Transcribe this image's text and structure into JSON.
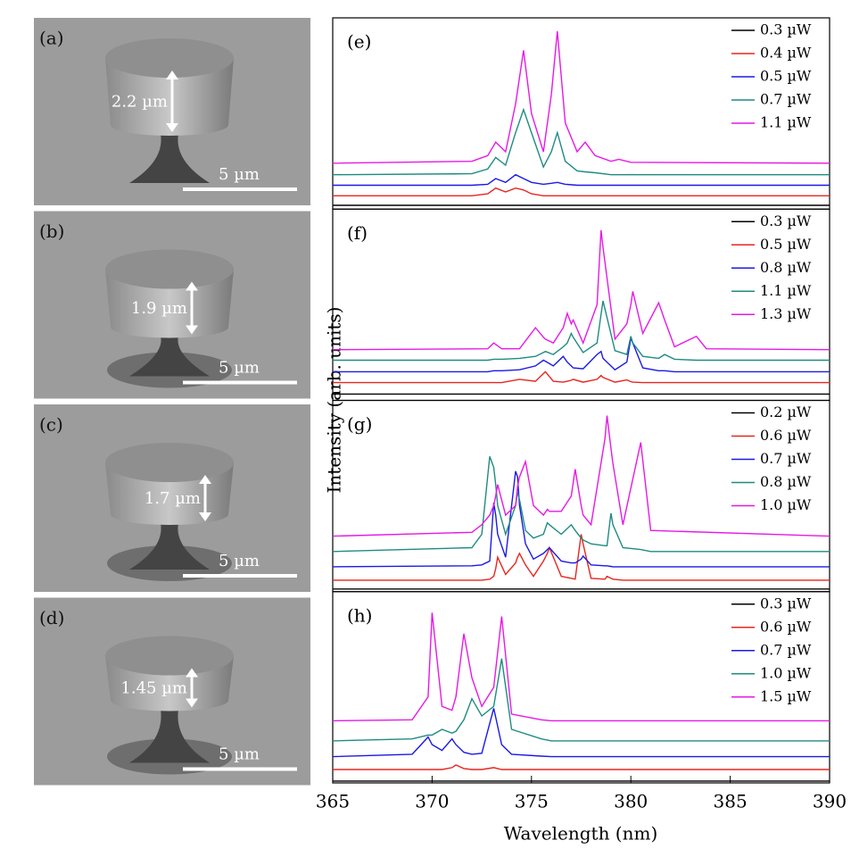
{
  "images": [
    {
      "label": "(a)",
      "height": "2.2 µm",
      "scale": "5 µm"
    },
    {
      "label": "(b)",
      "height": "1.9 µm",
      "scale": "5 µm"
    },
    {
      "label": "(c)",
      "height": "1.7 µm",
      "scale": "5 µm"
    },
    {
      "label": "(d)",
      "height": "1.45 µm",
      "scale": "5 µm"
    }
  ],
  "axes": {
    "xlabel": "Wavelength (nm)",
    "ylabel": "Intensity (arb. units)"
  },
  "chart_data": [
    {
      "type": "line",
      "title": "(e)",
      "xlim": [
        365,
        390
      ],
      "ylim": [
        0,
        100
      ],
      "x": [
        365,
        372,
        372.8,
        373.2,
        373.7,
        374.2,
        374.6,
        375.0,
        375.6,
        376.0,
        376.3,
        376.7,
        377.3,
        377.7,
        378.2,
        379.0,
        379.4,
        380,
        390
      ],
      "series": [
        {
          "name": "0.3 µW",
          "color": "#000000",
          "values": [
            2,
            2,
            2,
            2,
            2,
            2,
            2,
            2,
            2,
            2,
            2,
            2,
            2,
            2,
            2,
            2,
            2,
            2,
            2
          ]
        },
        {
          "name": "0.4 µW",
          "color": "#e8251f",
          "values": [
            7,
            7,
            8,
            11,
            9,
            11,
            10,
            8,
            7,
            7,
            7,
            7,
            7,
            7,
            7,
            7,
            7,
            7,
            7
          ]
        },
        {
          "name": "0.5 µW",
          "color": "#1a1ae6",
          "values": [
            12.5,
            12.5,
            13,
            16,
            14,
            18,
            16,
            14,
            13,
            13.5,
            14,
            13,
            12.5,
            12.5,
            12.5,
            12.5,
            12.5,
            12.5,
            12.5
          ]
        },
        {
          "name": "0.7 µW",
          "color": "#1e8c80",
          "values": [
            18,
            18.5,
            21,
            27,
            23,
            40,
            52,
            40,
            22,
            30,
            40,
            25,
            20,
            19.5,
            19,
            18,
            18,
            18,
            18
          ]
        },
        {
          "name": "1.1 µW",
          "color": "#e619e6",
          "values": [
            24,
            25,
            28,
            35,
            30,
            55,
            83,
            50,
            30,
            60,
            93,
            45,
            30,
            35,
            28,
            25,
            26,
            24.5,
            24
          ]
        }
      ]
    },
    {
      "type": "line",
      "title": "(f)",
      "xlim": [
        365,
        390
      ],
      "ylim": [
        0,
        100
      ],
      "x": [
        365,
        372.8,
        373.1,
        373.5,
        374.4,
        375.2,
        375.6,
        375.7,
        376.1,
        376.6,
        376.8,
        377.0,
        377.1,
        377.6,
        378.3,
        378.5,
        378.6,
        379.2,
        379.8,
        380.0,
        380.1,
        380.6,
        381.4,
        381.7,
        382.2,
        383.3,
        383.8,
        390
      ],
      "series": [
        {
          "name": "0.3 µW",
          "color": "#000000",
          "values": [
            3.3,
            3.3,
            3.3,
            3.3,
            3.3,
            3.3,
            3.3,
            3.3,
            3.3,
            3.3,
            3.3,
            3.3,
            3.3,
            3.3,
            3.3,
            3.3,
            3.3,
            3.3,
            3.3,
            3.3,
            3.3,
            3.3,
            3.3,
            3.3,
            3.3,
            3.3,
            3.3,
            3.3
          ]
        },
        {
          "name": "0.5 µW",
          "color": "#e8251f",
          "values": [
            9.3,
            9.3,
            9.3,
            9.3,
            11,
            10,
            14,
            15,
            10,
            9.5,
            10,
            10.5,
            11,
            9.5,
            11,
            13,
            12,
            9.5,
            10.7,
            9.8,
            9.5,
            9.3,
            9.3,
            9.3,
            9.3,
            9.3,
            9.3,
            9.3
          ]
        },
        {
          "name": "0.8 µW",
          "color": "#1a1ae6",
          "values": [
            15,
            15,
            15.5,
            15.5,
            16,
            18,
            21,
            20.5,
            18,
            23,
            20,
            18,
            17,
            16.5,
            24,
            25.6,
            22,
            16,
            20,
            32.6,
            30,
            17,
            15.5,
            15.5,
            15,
            15,
            15,
            15
          ]
        },
        {
          "name": "1.1 µW",
          "color": "#1e8c80",
          "values": [
            21,
            21,
            21.5,
            21.5,
            22,
            23,
            25,
            25.6,
            24,
            28,
            30,
            35,
            33,
            25,
            30,
            45,
            52,
            26,
            24,
            33.5,
            30,
            23,
            22,
            24,
            21.5,
            21,
            21,
            21
          ]
        },
        {
          "name": "1.3 µW",
          "color": "#e619e6",
          "values": [
            26.5,
            27,
            30,
            27,
            27,
            38,
            33,
            32,
            30,
            38,
            45.5,
            40,
            42,
            30,
            50,
            89,
            80,
            32,
            40,
            50,
            57,
            35,
            51,
            42,
            28,
            33.5,
            27,
            26.5
          ]
        }
      ]
    },
    {
      "type": "line",
      "title": "(g)",
      "xlim": [
        365,
        390
      ],
      "ylim": [
        0,
        100
      ],
      "x": [
        365,
        372,
        372.5,
        372.9,
        373.1,
        373.2,
        373.3,
        373.7,
        374.2,
        374.3,
        374.4,
        374.7,
        375.1,
        375.6,
        375.8,
        375.9,
        376.5,
        377.0,
        377.2,
        377.5,
        377.6,
        378.0,
        378.7,
        378.8,
        379.0,
        379.1,
        379.6,
        380.5,
        381,
        390
      ],
      "series": [
        {
          "name": "0.2 µW",
          "color": "#000000",
          "values": [
            1.4,
            1.4,
            1.4,
            1.4,
            1.4,
            1.4,
            1.4,
            1.4,
            1.4,
            1.4,
            1.4,
            1.4,
            1.4,
            1.4,
            1.4,
            1.4,
            1.4,
            1.4,
            1.4,
            1.4,
            1.4,
            1.4,
            1.4,
            1.4,
            1.4,
            1.4,
            1.4,
            1.4,
            1.4,
            1.4
          ]
        },
        {
          "name": "0.6 µW",
          "color": "#e8251f",
          "values": [
            6,
            6,
            6,
            6.5,
            8,
            12,
            18,
            9,
            15,
            18,
            20,
            14,
            8,
            16,
            20,
            23,
            8,
            7,
            6.5,
            30,
            25,
            7,
            6.5,
            8,
            7,
            6.5,
            6,
            6,
            6,
            6
          ]
        },
        {
          "name": "0.7 µW",
          "color": "#1a1ae6",
          "values": [
            13,
            13.5,
            14,
            16,
            46.5,
            40,
            30,
            18,
            63,
            60,
            45,
            25,
            17,
            20,
            22,
            23,
            16,
            15,
            15,
            17,
            18.6,
            14,
            13.5,
            13.5,
            13.2,
            13,
            13,
            13,
            13,
            13
          ]
        },
        {
          "name": "0.8 µW",
          "color": "#1e8c80",
          "values": [
            21,
            23,
            30,
            70.7,
            65,
            56,
            45,
            30,
            45,
            52,
            48,
            32,
            28,
            30,
            36,
            35,
            30,
            35,
            32,
            28,
            27,
            25,
            24,
            24,
            41,
            35,
            23,
            22,
            21,
            21
          ]
        },
        {
          "name": "1.0 µW",
          "color": "#e619e6",
          "values": [
            29,
            31,
            35,
            40,
            45,
            50,
            56,
            40,
            45,
            55,
            60,
            68,
            45,
            40,
            43,
            42,
            42,
            50,
            64,
            45,
            40,
            35,
            80,
            92,
            75,
            67,
            35,
            78,
            32,
            29
          ]
        }
      ]
    },
    {
      "type": "line",
      "title": "(h)",
      "xlim": [
        365,
        390
      ],
      "ylim": [
        0,
        100
      ],
      "xticks": [
        365,
        370,
        375,
        380,
        385,
        390
      ],
      "x": [
        365,
        369.0,
        369.8,
        370.0,
        370.5,
        371.0,
        371.2,
        371.6,
        372.0,
        372.5,
        373.1,
        373.5,
        374.0,
        375.5,
        376,
        390
      ],
      "series": [
        {
          "name": "0.3 µW",
          "color": "#000000",
          "values": [
            1,
            1,
            1,
            1,
            1,
            1,
            1,
            1,
            1,
            1,
            1,
            1,
            1,
            1,
            1,
            1
          ]
        },
        {
          "name": "0.6 µW",
          "color": "#e8251f",
          "values": [
            7,
            7,
            7,
            7,
            7,
            8,
            9.4,
            7.5,
            7,
            7,
            8,
            7,
            7,
            7,
            7,
            7
          ]
        },
        {
          "name": "0.7 µW",
          "color": "#1a1ae6",
          "values": [
            13.7,
            15,
            24,
            20,
            17,
            23,
            20,
            16,
            15,
            15.5,
            39,
            20,
            15,
            14,
            13.7,
            13.7
          ]
        },
        {
          "name": "1.0 µW",
          "color": "#1e8c80",
          "values": [
            22,
            23,
            25,
            25,
            28,
            26,
            27,
            33,
            44,
            35,
            40,
            65,
            28,
            23,
            22,
            22
          ]
        },
        {
          "name": "1.5 µW",
          "color": "#e619e6",
          "values": [
            32.5,
            33,
            45,
            89,
            40,
            38,
            45,
            78,
            55,
            40,
            50,
            87,
            36,
            33,
            32.5,
            32.5
          ]
        }
      ]
    }
  ]
}
